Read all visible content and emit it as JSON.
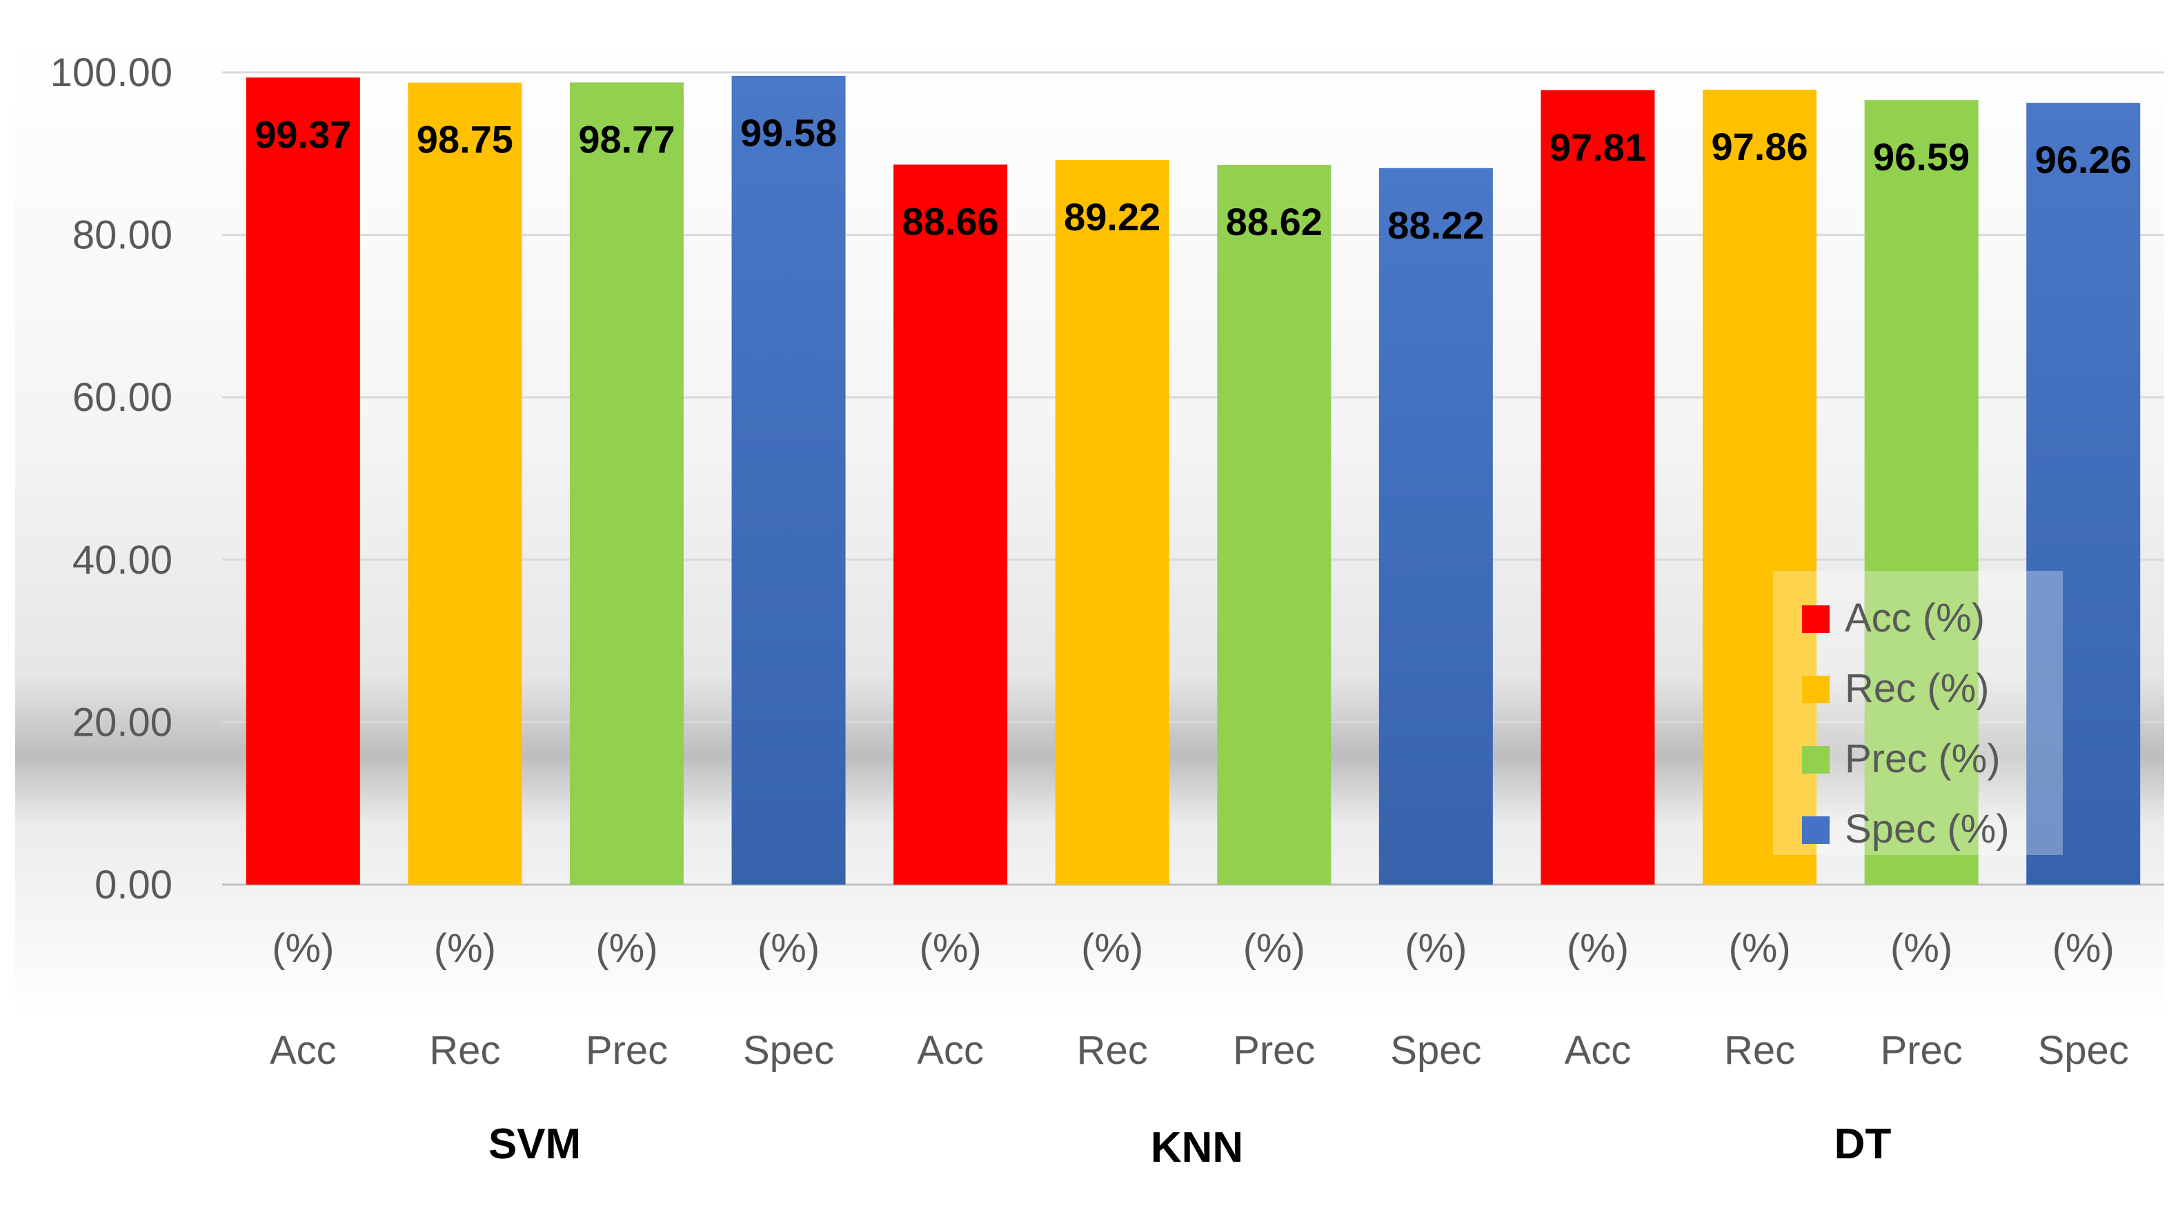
{
  "chart_data": {
    "type": "bar",
    "title": "",
    "xlabel": "",
    "ylabel": "",
    "ylim": [
      0,
      100
    ],
    "yticks": [
      "0.00",
      "20.00",
      "40.00",
      "60.00",
      "80.00",
      "100.00"
    ],
    "groups": [
      "SVM",
      "KNN",
      "DT"
    ],
    "metrics": [
      {
        "name": "Acc",
        "unit": "(%)",
        "legend": "Acc (%)",
        "color": "#ff0000"
      },
      {
        "name": "Rec",
        "unit": "(%)",
        "legend": "Rec (%)",
        "color": "#ffc000"
      },
      {
        "name": "Prec",
        "unit": "(%)",
        "legend": "Prec (%)",
        "color": "#92d050"
      },
      {
        "name": "Spec",
        "unit": "(%)",
        "legend": "Spec (%)",
        "color": "#4472c4"
      }
    ],
    "series": [
      {
        "name": "SVM",
        "values": [
          99.37,
          98.75,
          98.77,
          99.58
        ],
        "labels": [
          "99.37",
          "98.75",
          "98.77",
          "99.58"
        ]
      },
      {
        "name": "KNN",
        "values": [
          88.66,
          89.22,
          88.62,
          88.22
        ],
        "labels": [
          "88.66",
          "89.22",
          "88.62",
          "88.22"
        ]
      },
      {
        "name": "DT",
        "values": [
          97.81,
          97.86,
          96.59,
          96.26
        ],
        "labels": [
          "97.81",
          "97.86",
          "96.59",
          "96.26"
        ]
      }
    ],
    "legend_position": "bottom-right",
    "grid": true
  }
}
